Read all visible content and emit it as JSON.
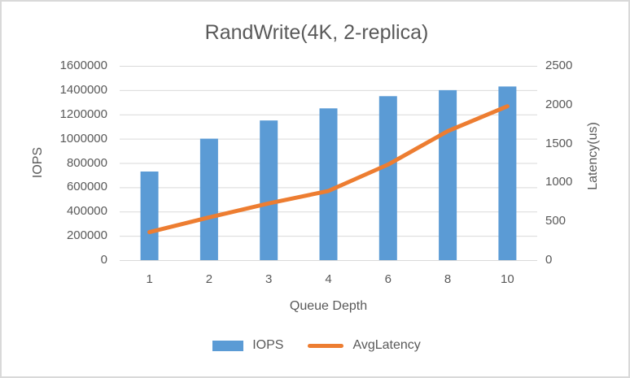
{
  "chart_data": {
    "type": "bar",
    "subtype": "combo-bar-line-dual-axis",
    "title": "RandWrite(4K, 2-replica)",
    "categories": [
      "1",
      "2",
      "3",
      "4",
      "6",
      "8",
      "10"
    ],
    "series": [
      {
        "name": "IOPS",
        "type": "bar",
        "axis": "left",
        "color": "#5B9BD5",
        "values": [
          730000,
          1000000,
          1150000,
          1250000,
          1350000,
          1400000,
          1430000
        ]
      },
      {
        "name": "AvgLatency",
        "type": "line",
        "axis": "right",
        "color": "#ED7D31",
        "values": [
          360,
          550,
          730,
          890,
          1230,
          1660,
          1980
        ]
      }
    ],
    "xlabel": "Queue Depth",
    "y_left": {
      "label": "IOPS",
      "min": 0,
      "max": 1600000,
      "step": 200000
    },
    "y_right": {
      "label": "Latency(us)",
      "min": 0,
      "max": 2500,
      "step": 500
    },
    "grid": true,
    "legend_position": "bottom"
  },
  "colors": {
    "grid": "#D9D9D9",
    "text": "#595959",
    "background": "#FFFFFF",
    "border": "#D9D9D9"
  }
}
